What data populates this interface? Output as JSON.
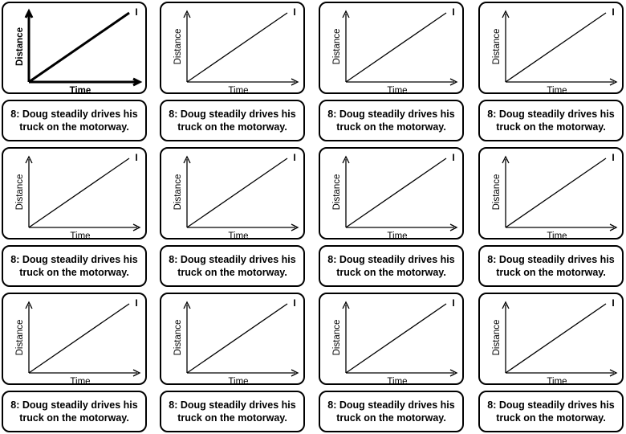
{
  "graph": {
    "xlabel": "Time",
    "ylabel": "Distance",
    "id": "I"
  },
  "caption": {
    "line1": "8: Doug steadily drives his",
    "line2": "truck on the motorway."
  },
  "cards": [
    {
      "emphasis": true
    },
    {
      "emphasis": false
    },
    {
      "emphasis": false
    },
    {
      "emphasis": false
    },
    {
      "emphasis": false
    },
    {
      "emphasis": false
    },
    {
      "emphasis": false
    },
    {
      "emphasis": false
    },
    {
      "emphasis": false
    },
    {
      "emphasis": false
    },
    {
      "emphasis": false
    },
    {
      "emphasis": false
    }
  ]
}
